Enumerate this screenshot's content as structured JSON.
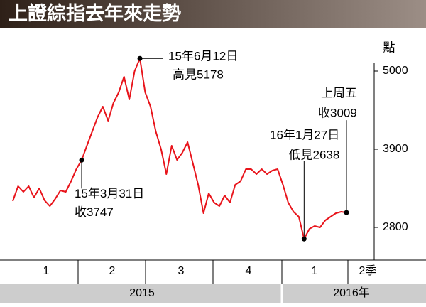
{
  "chart_data": {
    "type": "line",
    "title": "上證綜指去年來走勢",
    "unit": "點",
    "categories": [
      null,
      null,
      null,
      null,
      null,
      null,
      null,
      null,
      null,
      null,
      null,
      null,
      null,
      "15年3月31日",
      null,
      null,
      null,
      null,
      null,
      null,
      null,
      null,
      null,
      null,
      "15年6月12日",
      null,
      null,
      null,
      null,
      null,
      null,
      null,
      null,
      null,
      null,
      null,
      null,
      null,
      null,
      null,
      null,
      null,
      null,
      null,
      null,
      null,
      null,
      null,
      null,
      null,
      null,
      null,
      null,
      null,
      null,
      "16年1月27日",
      null,
      null,
      null,
      null,
      null,
      null,
      null,
      "上周五"
    ],
    "values": [
      3170,
      3380,
      3300,
      3380,
      3220,
      3350,
      3180,
      3100,
      3200,
      3320,
      3300,
      3450,
      3620,
      3747,
      3950,
      4150,
      4350,
      4500,
      4300,
      4550,
      4700,
      4920,
      4600,
      5000,
      5178,
      4700,
      4500,
      4150,
      3900,
      3550,
      3950,
      3750,
      3850,
      4000,
      3700,
      3400,
      3000,
      3280,
      3150,
      3100,
      3250,
      3150,
      3400,
      3450,
      3620,
      3620,
      3550,
      3620,
      3550,
      3600,
      3620,
      3400,
      3150,
      3020,
      2950,
      2638,
      2780,
      2820,
      2800,
      2900,
      2950,
      3000,
      3020,
      3009
    ],
    "value_labels": [
      null,
      null,
      null,
      null,
      null,
      null,
      null,
      null,
      null,
      null,
      null,
      null,
      null,
      "收3747",
      null,
      null,
      null,
      null,
      null,
      null,
      null,
      null,
      null,
      null,
      "高見5178",
      null,
      null,
      null,
      null,
      null,
      null,
      null,
      null,
      null,
      null,
      null,
      null,
      null,
      null,
      null,
      null,
      null,
      null,
      null,
      null,
      null,
      null,
      null,
      null,
      null,
      null,
      null,
      null,
      null,
      null,
      "低見2638",
      null,
      null,
      null,
      null,
      null,
      null,
      null,
      "收3009"
    ],
    "color": "#e8141b",
    "ylim": [
      2400,
      5300
    ],
    "yticks": [
      2800,
      3900,
      5000
    ],
    "quarters": [
      "1",
      "2",
      "3",
      "4",
      "1",
      "2季"
    ],
    "years": [
      "2015",
      "2016年"
    ]
  }
}
